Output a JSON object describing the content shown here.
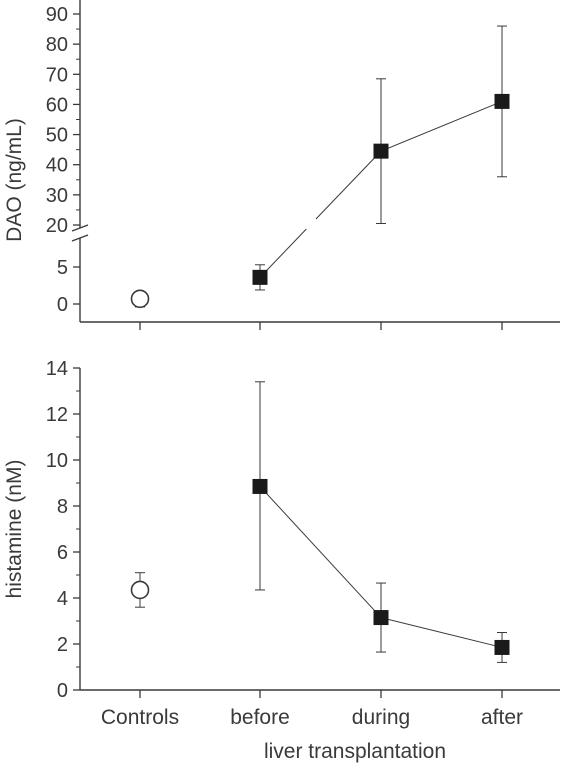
{
  "chart_data": [
    {
      "type": "scatter",
      "ylabel": "DAO (ng/mL)",
      "xlabel": "",
      "categories": [
        "Controls",
        "before",
        "during",
        "after"
      ],
      "axis_break": {
        "lower": [
          -1,
          8
        ],
        "upper": [
          20,
          92
        ]
      },
      "lower_ticks": [
        "0",
        "5"
      ],
      "upper_ticks": [
        "20",
        "30",
        "40",
        "50",
        "60",
        "70",
        "80",
        "90"
      ],
      "control": {
        "category": "Controls",
        "value": 0.7,
        "err_low": -0.4,
        "err_high": 1.4,
        "marker": "open-circle"
      },
      "series": [
        {
          "marker": "filled-square",
          "connected": true,
          "points": [
            {
              "category": "before",
              "value": 3.6,
              "err_low": 1.9,
              "err_high": 5.3
            },
            {
              "category": "during",
              "value": 44.5,
              "err_low": 20.5,
              "err_high": 68.5
            },
            {
              "category": "after",
              "value": 61.0,
              "err_low": 36.0,
              "err_high": 86.0
            }
          ]
        }
      ],
      "grid": false,
      "color": "#3a3a3a"
    },
    {
      "type": "scatter",
      "ylabel": "histamine (nM)",
      "xlabel": "liver transplantation",
      "categories": [
        "Controls",
        "before",
        "during",
        "after"
      ],
      "ylim": [
        0,
        14
      ],
      "yticks": [
        "0",
        "2",
        "4",
        "6",
        "8",
        "10",
        "12",
        "14"
      ],
      "control": {
        "category": "Controls",
        "value": 4.35,
        "err_low": 3.6,
        "err_high": 5.1,
        "marker": "open-circle"
      },
      "series": [
        {
          "marker": "filled-square",
          "connected": true,
          "points": [
            {
              "category": "before",
              "value": 8.85,
              "err_low": 4.35,
              "err_high": 13.4
            },
            {
              "category": "during",
              "value": 3.15,
              "err_low": 1.65,
              "err_high": 4.65
            },
            {
              "category": "after",
              "value": 1.85,
              "err_low": 1.2,
              "err_high": 2.5
            }
          ]
        }
      ],
      "grid": false,
      "color": "#3a3a3a"
    }
  ]
}
